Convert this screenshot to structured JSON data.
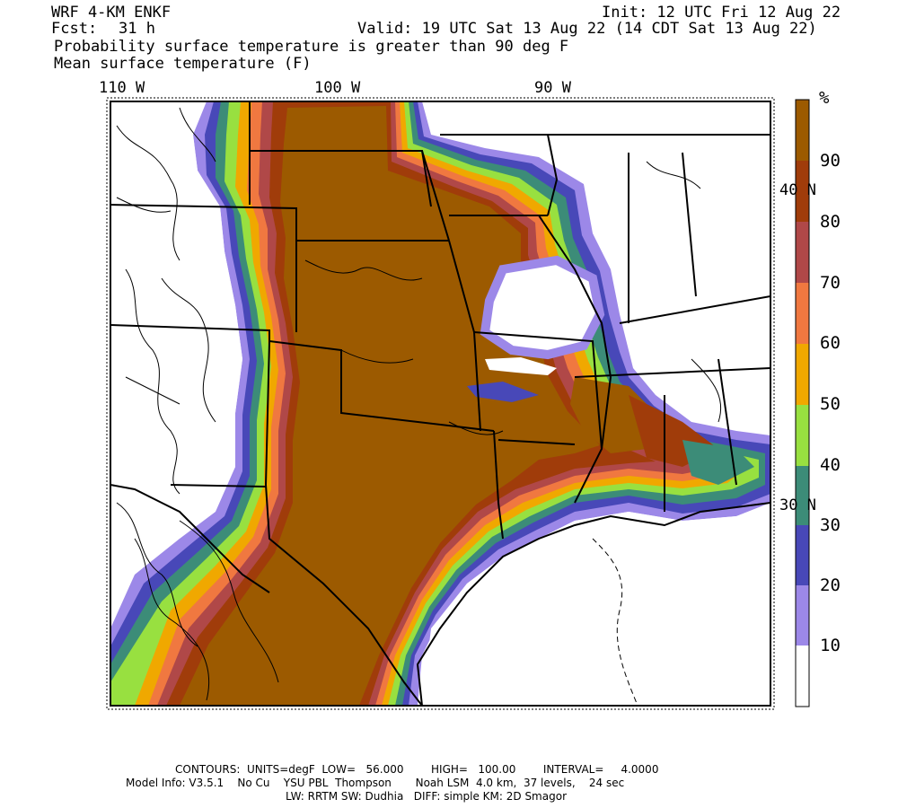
{
  "header": {
    "model": "WRF 4-KM ENKF",
    "init": "Init: 12 UTC Fri 12 Aug 22",
    "fcst_label": "Fcst:",
    "fcst_value": "31 h",
    "valid": "Valid: 19 UTC Sat 13 Aug 22 (14 CDT Sat 13 Aug 22)",
    "field1": "Probability surface temperature is greater than 90 deg F",
    "field2": "Mean surface temperature (F)"
  },
  "axes": {
    "lon_labels": [
      "110 W",
      "100 W",
      "90 W"
    ],
    "lat_labels": [
      "40 N",
      "30 N"
    ]
  },
  "colorbar": {
    "unit": "%",
    "labels": [
      "90",
      "80",
      "70",
      "60",
      "50",
      "40",
      "30",
      "20",
      "10"
    ],
    "colors": [
      "#9c5a00",
      "#a03c0a",
      "#b04848",
      "#f07840",
      "#f0a800",
      "#98e040",
      "#3c8c78",
      "#4848b8",
      "#9c88e8",
      "#ffffff"
    ]
  },
  "legend_colors": {
    "high": "#9c5a00",
    "dark_orange": "#a03c0a",
    "red": "#b04848",
    "orange": "#f07840",
    "yellow": "#f0a800",
    "green": "#98e040",
    "teal": "#3c8c78",
    "blue": "#4848b8",
    "lavender": "#9c88e8"
  },
  "footer": {
    "contours": "CONTOURS:  UNITS=degF  LOW=   56.000        HIGH=   100.00        INTERVAL=     4.0000",
    "model_info": "Model Info: V3.5.1    No Cu    YSU PBL  Thompson       Noah LSM  4.0 km,  37 levels,    24 sec",
    "physics": "LW: RRTM SW: Dudhia   DIFF: simple KM: 2D Smagor"
  }
}
